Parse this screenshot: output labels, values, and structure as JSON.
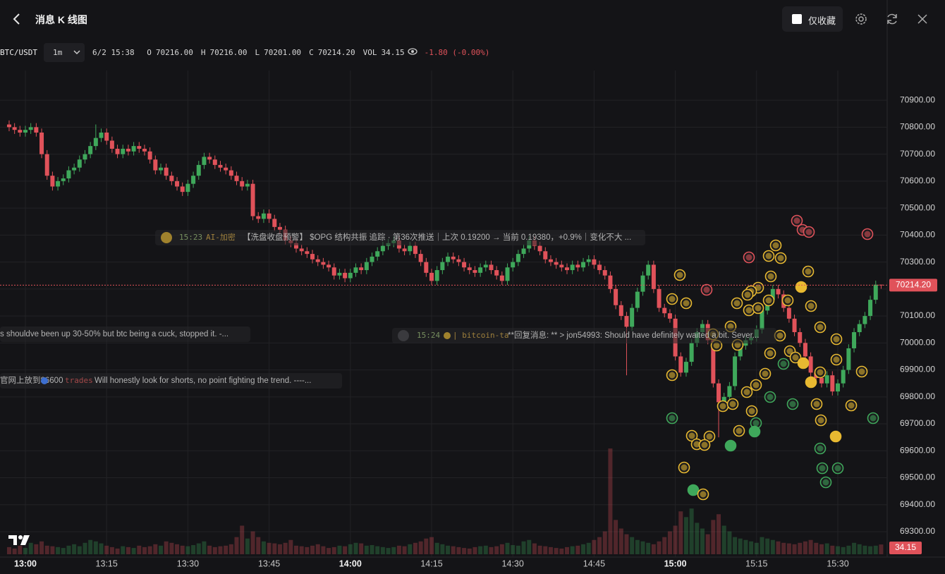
{
  "header": {
    "title": "消息 K 线图",
    "favorites_label": "仅收藏",
    "symbol": "BTC/USDT",
    "interval": "1m",
    "time": "6/2 15:38",
    "ohlc": [
      {
        "label": "O",
        "value": "70216.00"
      },
      {
        "label": "H",
        "value": "70216.00"
      },
      {
        "label": "L",
        "value": "70201.00"
      },
      {
        "label": "C",
        "value": "70214.20"
      },
      {
        "label": "VOL",
        "value": "34.15"
      }
    ],
    "change": "-1.80 (-0.00%)"
  },
  "news": [
    {
      "time": "15:23",
      "source": "AI-加密",
      "text": "【洗盘收盘预警】 $OPG 结构共振 追踪 · 第36次推送｜上次 0.19200 → 当前 0.19380，+0.9%｜变化不大 ..."
    },
    {
      "text": "s shouldve been up 30-50% but btc being a cuck, stopped it. -..."
    },
    {
      "time": "15:24",
      "source": "| bitcoin-ta",
      "text": "**回复消息: ** > jon54993: Should have definitely waited a bit. Sever..."
    },
    {
      "prefix": "官网上放到86600",
      "source": "trades",
      "text": "Will honestly look for shorts, no point fighting the trend. ----..."
    }
  ],
  "chart_data": {
    "type": "candlestick",
    "up_color": "#3fa85b",
    "down_color": "#e0525a",
    "grid": true,
    "last_close_label": "70214.20",
    "last_volume_label": "34.15",
    "categories": [
      null,
      null,
      null,
      "13:00",
      null,
      null,
      null,
      null,
      null,
      null,
      null,
      null,
      null,
      null,
      null,
      null,
      null,
      null,
      "13:15",
      null,
      null,
      null,
      null,
      null,
      null,
      null,
      null,
      null,
      null,
      null,
      null,
      null,
      null,
      "13:30",
      null,
      null,
      null,
      null,
      null,
      null,
      null,
      null,
      null,
      null,
      null,
      null,
      null,
      null,
      "13:45",
      null,
      null,
      null,
      null,
      null,
      null,
      null,
      null,
      null,
      null,
      null,
      null,
      null,
      null,
      "14:00",
      null,
      null,
      null,
      null,
      null,
      null,
      null,
      null,
      null,
      null,
      null,
      null,
      null,
      null,
      "14:15",
      null,
      null,
      null,
      null,
      null,
      null,
      null,
      null,
      null,
      null,
      null,
      null,
      null,
      null,
      "14:30",
      null,
      null,
      null,
      null,
      null,
      null,
      null,
      null,
      null,
      null,
      null,
      null,
      null,
      null,
      "14:45",
      null,
      null,
      null,
      null,
      null,
      null,
      null,
      null,
      null,
      null,
      null,
      null,
      null,
      null,
      "15:00",
      null,
      null,
      null,
      null,
      null,
      null,
      null,
      null,
      null,
      null,
      null,
      null,
      null,
      null,
      "15:15",
      null,
      null,
      null,
      null,
      null,
      null,
      null,
      null,
      null,
      null,
      null,
      null,
      null,
      null,
      "15:30",
      null,
      null,
      null,
      null,
      null,
      null,
      null,
      null
    ],
    "open": [
      70810,
      70800,
      70790,
      70780,
      70790,
      70800,
      70780,
      70700,
      70620,
      70580,
      70600,
      70610,
      70640,
      70650,
      70680,
      70700,
      70730,
      70760,
      70780,
      70750,
      70720,
      70700,
      70720,
      70710,
      70730,
      70720,
      70710,
      70680,
      70640,
      70650,
      70620,
      70600,
      70580,
      70560,
      70590,
      70620,
      70660,
      70690,
      70680,
      70660,
      70650,
      70640,
      70620,
      70600,
      70580,
      70590,
      70470,
      70460,
      70480,
      70460,
      70430,
      70420,
      70380,
      70370,
      70350,
      70340,
      70330,
      70310,
      70300,
      70290,
      70280,
      70250,
      70260,
      70240,
      70260,
      70280,
      70270,
      70300,
      70320,
      70340,
      70360,
      70370,
      70380,
      70350,
      70340,
      70360,
      70330,
      70300,
      70260,
      70230,
      70270,
      70300,
      70320,
      70310,
      70300,
      70280,
      70270,
      70260,
      70280,
      70290,
      70270,
      70250,
      70230,
      70280,
      70300,
      70330,
      70350,
      70380,
      70360,
      70340,
      70310,
      70300,
      70290,
      70280,
      70270,
      70290,
      70280,
      70300,
      70310,
      70290,
      70270,
      70250,
      70200,
      70140,
      70100,
      70060,
      70130,
      70190,
      70250,
      70290,
      70200,
      70130,
      70110,
      70090,
      69950,
      69890,
      69930,
      70000,
      70040,
      70070,
      70010,
      69850,
      69780,
      69800,
      69840,
      69950,
      69990,
      70010,
      70020,
      70050,
      70120,
      70160,
      70200,
      70180,
      70130,
      70090,
      70040,
      70000,
      69950,
      69890,
      69870,
      69850,
      69880,
      69820,
      69850,
      69900,
      69980,
      70040,
      70070,
      70100,
      70160,
      70216
    ],
    "high": [
      70825,
      70815,
      70805,
      70805,
      70815,
      70815,
      70795,
      70715,
      70635,
      70615,
      70625,
      70655,
      70665,
      70695,
      70715,
      70745,
      70810,
      70795,
      70795,
      70765,
      70735,
      70735,
      70735,
      70745,
      70745,
      70735,
      70725,
      70695,
      70665,
      70665,
      70635,
      70615,
      70595,
      70605,
      70635,
      70675,
      70705,
      70705,
      70695,
      70675,
      70665,
      70655,
      70635,
      70615,
      70605,
      70605,
      70485,
      70495,
      70495,
      70475,
      70445,
      70435,
      70395,
      70385,
      70365,
      70355,
      70345,
      70325,
      70315,
      70305,
      70295,
      70275,
      70275,
      70275,
      70295,
      70295,
      70315,
      70335,
      70355,
      70375,
      70385,
      70395,
      70395,
      70365,
      70375,
      70375,
      70345,
      70315,
      70275,
      70285,
      70315,
      70335,
      70335,
      70325,
      70315,
      70295,
      70285,
      70295,
      70305,
      70305,
      70285,
      70265,
      70295,
      70315,
      70345,
      70365,
      70395,
      70395,
      70375,
      70355,
      70325,
      70315,
      70305,
      70295,
      70305,
      70305,
      70315,
      70325,
      70325,
      70305,
      70285,
      70265,
      70215,
      70155,
      70115,
      70145,
      70205,
      70265,
      70305,
      70305,
      70215,
      70145,
      70125,
      70105,
      69965,
      69945,
      70015,
      70055,
      70085,
      70085,
      70025,
      69865,
      69815,
      69855,
      69965,
      70005,
      70025,
      70035,
      70065,
      70135,
      70175,
      70215,
      70215,
      70195,
      70145,
      70105,
      70055,
      70015,
      69965,
      69905,
      69885,
      69895,
      69895,
      69865,
      69915,
      69995,
      70055,
      70085,
      70115,
      70175,
      70231,
      70216
    ],
    "low": [
      70785,
      70775,
      70765,
      70765,
      70775,
      70765,
      70685,
      70605,
      70565,
      70565,
      70585,
      70595,
      70625,
      70635,
      70665,
      70685,
      70715,
      70745,
      70735,
      70705,
      70685,
      70685,
      70695,
      70695,
      70705,
      70695,
      70665,
      70625,
      70625,
      70605,
      70585,
      70565,
      70545,
      70545,
      70575,
      70605,
      70645,
      70665,
      70645,
      70635,
      70625,
      70605,
      70585,
      70565,
      70565,
      70455,
      70445,
      70445,
      70445,
      70415,
      70405,
      70365,
      70355,
      70335,
      70325,
      70315,
      70295,
      70285,
      70275,
      70265,
      70235,
      70235,
      70225,
      70225,
      70245,
      70255,
      70255,
      70285,
      70305,
      70325,
      70345,
      70355,
      70335,
      70325,
      70325,
      70315,
      70285,
      70245,
      70215,
      70215,
      70255,
      70285,
      70295,
      70285,
      70265,
      70255,
      70245,
      70245,
      70265,
      70255,
      70235,
      70215,
      70215,
      70265,
      70285,
      70315,
      70335,
      70345,
      70325,
      70295,
      70285,
      70275,
      70265,
      70255,
      70255,
      70265,
      70265,
      70285,
      70275,
      70255,
      70235,
      70185,
      70125,
      70085,
      69880,
      70045,
      70115,
      70175,
      70235,
      70185,
      70115,
      70095,
      70075,
      69935,
      69875,
      69875,
      69915,
      69985,
      70025,
      69995,
      69835,
      69650,
      69765,
      69785,
      69825,
      69935,
      69975,
      69995,
      70005,
      70035,
      70105,
      70145,
      70165,
      70115,
      70075,
      70025,
      69985,
      69935,
      69875,
      69855,
      69835,
      69835,
      69805,
      69805,
      69835,
      69885,
      69965,
      70025,
      70055,
      70085,
      70145,
      70201
    ],
    "close": [
      70800,
      70790,
      70780,
      70790,
      70800,
      70780,
      70700,
      70620,
      70580,
      70600,
      70610,
      70640,
      70650,
      70680,
      70700,
      70730,
      70760,
      70780,
      70750,
      70720,
      70700,
      70720,
      70710,
      70730,
      70720,
      70710,
      70680,
      70640,
      70650,
      70620,
      70600,
      70580,
      70560,
      70590,
      70620,
      70660,
      70690,
      70680,
      70660,
      70650,
      70640,
      70620,
      70600,
      70580,
      70590,
      70470,
      70460,
      70480,
      70460,
      70430,
      70420,
      70380,
      70370,
      70350,
      70340,
      70330,
      70310,
      70300,
      70290,
      70280,
      70250,
      70260,
      70240,
      70260,
      70280,
      70270,
      70300,
      70320,
      70340,
      70360,
      70370,
      70380,
      70350,
      70340,
      70360,
      70330,
      70300,
      70260,
      70230,
      70270,
      70300,
      70320,
      70310,
      70300,
      70280,
      70270,
      70260,
      70280,
      70290,
      70270,
      70250,
      70230,
      70280,
      70300,
      70330,
      70350,
      70380,
      70360,
      70340,
      70310,
      70300,
      70290,
      70280,
      70270,
      70290,
      70280,
      70300,
      70310,
      70290,
      70270,
      70250,
      70200,
      70140,
      70100,
      70060,
      70130,
      70190,
      70250,
      70290,
      70200,
      70130,
      70110,
      70090,
      69950,
      69890,
      69930,
      70000,
      70040,
      70070,
      70010,
      69850,
      69780,
      69800,
      69840,
      69950,
      69990,
      70010,
      70020,
      70050,
      70120,
      70160,
      70200,
      70180,
      70130,
      70090,
      70040,
      70000,
      69950,
      69890,
      69870,
      69850,
      69880,
      69820,
      69850,
      69900,
      69980,
      70040,
      70070,
      70100,
      70160,
      70216,
      70214.2
    ],
    "volume": [
      25,
      20,
      30,
      22,
      40,
      35,
      45,
      30,
      28,
      25,
      22,
      30,
      35,
      28,
      40,
      50,
      45,
      38,
      30,
      25,
      20,
      28,
      25,
      22,
      30,
      25,
      28,
      35,
      30,
      45,
      40,
      35,
      30,
      28,
      32,
      38,
      45,
      30,
      25,
      28,
      30,
      35,
      60,
      100,
      55,
      80,
      60,
      45,
      40,
      38,
      35,
      40,
      50,
      30,
      28,
      25,
      30,
      35,
      28,
      22,
      25,
      30,
      28,
      35,
      40,
      38,
      30,
      32,
      28,
      25,
      22,
      25,
      30,
      28,
      35,
      40,
      45,
      55,
      60,
      40,
      35,
      30,
      28,
      25,
      22,
      20,
      25,
      28,
      30,
      25,
      28,
      35,
      40,
      32,
      30,
      45,
      50,
      38,
      30,
      28,
      25,
      22,
      20,
      25,
      28,
      30,
      35,
      40,
      50,
      60,
      80,
      370,
      120,
      90,
      70,
      60,
      50,
      45,
      40,
      35,
      45,
      60,
      80,
      100,
      150,
      130,
      160,
      110,
      90,
      70,
      120,
      140,
      100,
      80,
      60,
      55,
      50,
      45,
      40,
      60,
      55,
      50,
      45,
      40,
      38,
      35,
      40,
      45,
      50,
      40,
      35,
      38,
      30,
      28,
      25,
      30,
      40,
      35,
      30,
      28,
      30,
      34.15
    ],
    "ylim": [
      69206,
      70997
    ],
    "yticks": [
      {
        "value": 69300,
        "label": "69300.00"
      },
      {
        "value": 69400,
        "label": "69400.00"
      },
      {
        "value": 69500,
        "label": "69500.00"
      },
      {
        "value": 69600,
        "label": "69600.00"
      },
      {
        "value": 69700,
        "label": "69700.00"
      },
      {
        "value": 69800,
        "label": "69800.00"
      },
      {
        "value": 69900,
        "label": "69900.00"
      },
      {
        "value": 70000,
        "label": "70000.00"
      },
      {
        "value": 70100,
        "label": "70100.00"
      },
      {
        "value": 70200,
        "label": "70200.00"
      },
      {
        "value": 70300,
        "label": "70300.00"
      },
      {
        "value": 70400,
        "label": "70400.00"
      },
      {
        "value": 70500,
        "label": "70500.00"
      },
      {
        "value": 70600,
        "label": "70600.00"
      },
      {
        "value": 70700,
        "label": "70700.00"
      },
      {
        "value": 70800,
        "label": "70800.00"
      },
      {
        "value": 70900,
        "label": "70900.00"
      }
    ]
  }
}
